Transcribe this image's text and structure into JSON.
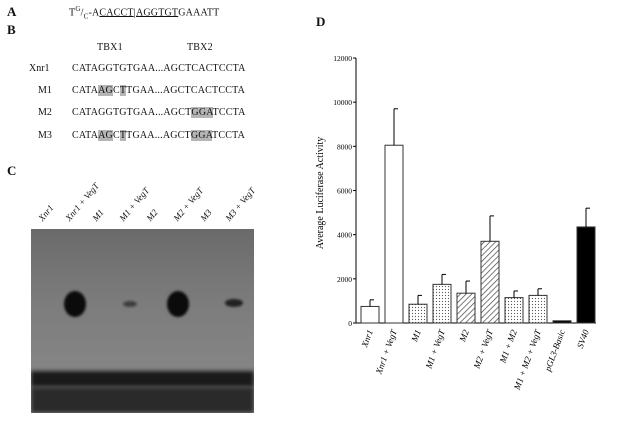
{
  "panelA": {
    "label": "A",
    "prefix": "T",
    "sup": "G",
    "slash": "/",
    "sub": "C",
    "seq_a": "-A",
    "seq_b": "CACCT",
    "sep": "|",
    "seq_c": "AGGTGT",
    "seq_d": "GAAATT"
  },
  "panelB": {
    "label": "B",
    "header_tbx1": "TBX1",
    "header_tbx2": "TBX2",
    "rows": [
      {
        "name": "Xnr1",
        "s1": "CATAGGTGTGAA",
        "dots": "...",
        "s2": "AGCTCACTCCTA"
      },
      {
        "name": "M1",
        "s1a": "CATA",
        "s1b": "AG",
        "s1c": "C",
        "s1d": "T",
        "s1e": "TGAA",
        "dots": "...",
        "s2": "AGCTCACTCCTA"
      },
      {
        "name": "M2",
        "s1": "CATAGGTGTGAA",
        "dots": "...",
        "s2a": "AGCT",
        "s2b": "GGA",
        "s2c": "TCCTA"
      },
      {
        "name": "M3",
        "s1a": "CATA",
        "s1b": "AG",
        "s1c": "C",
        "s1d": "T",
        "s1e": "TGAA",
        "dots": "...",
        "s2a": "AGCT",
        "s2b": "GGA",
        "s2c": "TCCTA"
      }
    ]
  },
  "panelC": {
    "label": "C",
    "lanes": [
      "Xnr1",
      "Xnr1 + VegT",
      "M1",
      "M1 + VegT",
      "M2",
      "M2 + VegT",
      "M3",
      "M3 + VegT"
    ]
  },
  "chart_data": {
    "type": "bar",
    "panel_label": "D",
    "title": "",
    "ylabel": "Average Luciferase Activity",
    "xlabel": "",
    "ylim": [
      0,
      12000
    ],
    "yticks": [
      0,
      2000,
      4000,
      6000,
      8000,
      10000,
      12000
    ],
    "grid": false,
    "categories": [
      "Xnr1",
      "Xnr1 + VegT",
      "M1",
      "M1 + VegT",
      "M2",
      "M2 + VegT",
      "M1 + M2",
      "M1 + M2 + VegT",
      "pGL3-Basic",
      "SV40"
    ],
    "values": [
      750,
      8050,
      850,
      1750,
      1350,
      3700,
      1150,
      1250,
      100,
      4350
    ],
    "errors": [
      300,
      1650,
      400,
      450,
      550,
      1150,
      300,
      300,
      0,
      850
    ],
    "fills": [
      "white",
      "white",
      "dots",
      "dots",
      "hatch",
      "hatch",
      "dots",
      "dots",
      "solid",
      "solid"
    ],
    "colors": {
      "bar_stroke": "#333333",
      "solid": "#000000"
    }
  }
}
